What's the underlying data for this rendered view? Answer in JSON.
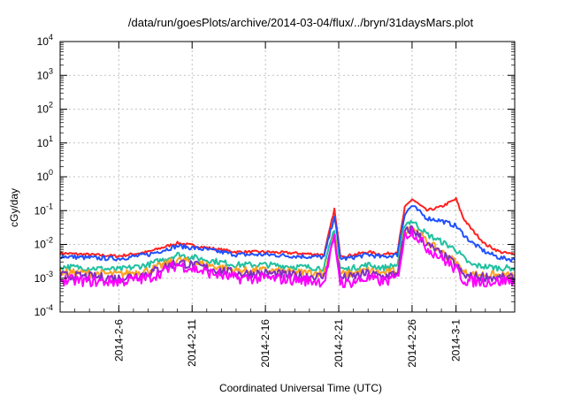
{
  "chart_data": {
    "type": "line",
    "title": "/data/run/goesPlots/archive/2014-03-04/flux/../bryn/31daysMars.plot",
    "xlabel": "Coordinated Universal Time (UTC)",
    "ylabel": "cGy/day",
    "yscale": "log",
    "ylim": [
      0.0001,
      10000
    ],
    "xlim": [
      "2014-02-02",
      "2014-03-05"
    ],
    "grid": true,
    "legend": "none",
    "y_ticks": [
      {
        "mantissa": "10",
        "exp": "-4",
        "value": 0.0001
      },
      {
        "mantissa": "10",
        "exp": "-3",
        "value": 0.001
      },
      {
        "mantissa": "10",
        "exp": "-2",
        "value": 0.01
      },
      {
        "mantissa": "10",
        "exp": "-1",
        "value": 0.1
      },
      {
        "mantissa": "10",
        "exp": "0",
        "value": 1
      },
      {
        "mantissa": "10",
        "exp": "1",
        "value": 10
      },
      {
        "mantissa": "10",
        "exp": "2",
        "value": 100
      },
      {
        "mantissa": "10",
        "exp": "3",
        "value": 1000
      },
      {
        "mantissa": "10",
        "exp": "4",
        "value": 10000
      }
    ],
    "x_ticks": [
      {
        "label": "2014-2-6",
        "date": "2014-02-06"
      },
      {
        "label": "2014-2-11",
        "date": "2014-02-11"
      },
      {
        "label": "2014-2-16",
        "date": "2014-02-16"
      },
      {
        "label": "2014-2-21",
        "date": "2014-02-21"
      },
      {
        "label": "2014-2-26",
        "date": "2014-02-26"
      },
      {
        "label": "2014-3-1",
        "date": "2014-03-01"
      }
    ],
    "series": [
      {
        "color": "#ff2020",
        "points": [
          [
            "2014-02-02",
            0.0055
          ],
          [
            "2014-02-04",
            0.005
          ],
          [
            "2014-02-06",
            0.0045
          ],
          [
            "2014-02-08",
            0.006
          ],
          [
            "2014-02-10",
            0.011
          ],
          [
            "2014-02-12",
            0.008
          ],
          [
            "2014-02-14",
            0.006
          ],
          [
            "2014-02-16",
            0.006
          ],
          [
            "2014-02-18",
            0.0055
          ],
          [
            "2014-02-20",
            0.005
          ],
          [
            "2014-02-20.7",
            0.11
          ],
          [
            "2014-02-21.1",
            0.005
          ],
          [
            "2014-02-21.5",
            0.0045
          ],
          [
            "2014-02-23",
            0.006
          ],
          [
            "2014-02-24",
            0.005
          ],
          [
            "2014-02-25",
            0.006
          ],
          [
            "2014-02-25.5",
            0.12
          ],
          [
            "2014-02-26",
            0.22
          ],
          [
            "2014-02-27",
            0.1
          ],
          [
            "2014-02-28",
            0.13
          ],
          [
            "2014-03-01",
            0.22
          ],
          [
            "2014-03-01.5",
            0.06
          ],
          [
            "2014-03-02",
            0.03
          ],
          [
            "2014-03-03",
            0.01
          ],
          [
            "2014-03-04",
            0.006
          ],
          [
            "2014-03-05",
            0.005
          ]
        ]
      },
      {
        "color": "#2050ff",
        "points": [
          [
            "2014-02-02",
            0.0045
          ],
          [
            "2014-02-04",
            0.004
          ],
          [
            "2014-02-06",
            0.0038
          ],
          [
            "2014-02-08",
            0.005
          ],
          [
            "2014-02-10",
            0.009
          ],
          [
            "2014-02-12",
            0.007
          ],
          [
            "2014-02-14",
            0.005
          ],
          [
            "2014-02-16",
            0.005
          ],
          [
            "2014-02-18",
            0.0045
          ],
          [
            "2014-02-20",
            0.0042
          ],
          [
            "2014-02-20.7",
            0.07
          ],
          [
            "2014-02-21.1",
            0.004
          ],
          [
            "2014-02-21.5",
            0.0038
          ],
          [
            "2014-02-23",
            0.005
          ],
          [
            "2014-02-24",
            0.0042
          ],
          [
            "2014-02-25",
            0.005
          ],
          [
            "2014-02-25.5",
            0.08
          ],
          [
            "2014-02-26",
            0.14
          ],
          [
            "2014-02-27",
            0.06
          ],
          [
            "2014-02-28",
            0.05
          ],
          [
            "2014-03-01",
            0.035
          ],
          [
            "2014-03-01.5",
            0.02
          ],
          [
            "2014-03-02",
            0.012
          ],
          [
            "2014-03-03",
            0.006
          ],
          [
            "2014-03-04",
            0.004
          ],
          [
            "2014-03-05",
            0.0035
          ]
        ]
      },
      {
        "color": "#20c0a0",
        "points": [
          [
            "2014-02-02",
            0.0022
          ],
          [
            "2014-02-04",
            0.002
          ],
          [
            "2014-02-06",
            0.0018
          ],
          [
            "2014-02-08",
            0.0025
          ],
          [
            "2014-02-10",
            0.005
          ],
          [
            "2014-02-12",
            0.0035
          ],
          [
            "2014-02-14",
            0.0025
          ],
          [
            "2014-02-16",
            0.0025
          ],
          [
            "2014-02-18",
            0.0022
          ],
          [
            "2014-02-20",
            0.002
          ],
          [
            "2014-02-20.7",
            0.03
          ],
          [
            "2014-02-21.1",
            0.002
          ],
          [
            "2014-02-21.5",
            0.0018
          ],
          [
            "2014-02-23",
            0.0025
          ],
          [
            "2014-02-24",
            0.002
          ],
          [
            "2014-02-25",
            0.0025
          ],
          [
            "2014-02-25.5",
            0.04
          ],
          [
            "2014-02-26",
            0.05
          ],
          [
            "2014-02-27",
            0.02
          ],
          [
            "2014-02-28",
            0.012
          ],
          [
            "2014-03-01",
            0.007
          ],
          [
            "2014-03-01.5",
            0.004
          ],
          [
            "2014-03-02",
            0.0025
          ],
          [
            "2014-03-03",
            0.0022
          ],
          [
            "2014-03-04",
            0.002
          ],
          [
            "2014-03-05",
            0.002
          ]
        ]
      },
      {
        "color": "#ffa020",
        "points": [
          [
            "2014-02-02",
            0.0015
          ],
          [
            "2014-02-04",
            0.0014
          ],
          [
            "2014-02-06",
            0.0013
          ],
          [
            "2014-02-08",
            0.0017
          ],
          [
            "2014-02-10",
            0.0035
          ],
          [
            "2014-02-12",
            0.0025
          ],
          [
            "2014-02-14",
            0.0017
          ],
          [
            "2014-02-16",
            0.0017
          ],
          [
            "2014-02-18",
            0.0015
          ],
          [
            "2014-02-20",
            0.0014
          ],
          [
            "2014-02-20.7",
            0.02
          ],
          [
            "2014-02-21.1",
            0.0014
          ],
          [
            "2014-02-21.5",
            0.0013
          ],
          [
            "2014-02-23",
            0.0017
          ],
          [
            "2014-02-24",
            0.0014
          ],
          [
            "2014-02-25",
            0.0017
          ],
          [
            "2014-02-25.5",
            0.025
          ],
          [
            "2014-02-26",
            0.035
          ],
          [
            "2014-02-27",
            0.012
          ],
          [
            "2014-02-28",
            0.006
          ],
          [
            "2014-03-01",
            0.003
          ],
          [
            "2014-03-01.5",
            0.0015
          ],
          [
            "2014-03-02",
            0.0013
          ],
          [
            "2014-03-03",
            0.0013
          ],
          [
            "2014-03-04",
            0.0012
          ],
          [
            "2014-03-05",
            0.0012
          ]
        ]
      },
      {
        "color": "#8030c0",
        "points": [
          [
            "2014-02-02",
            0.0012
          ],
          [
            "2014-02-04",
            0.0011
          ],
          [
            "2014-02-06",
            0.001
          ],
          [
            "2014-02-08",
            0.0014
          ],
          [
            "2014-02-10",
            0.003
          ],
          [
            "2014-02-12",
            0.002
          ],
          [
            "2014-02-14",
            0.0014
          ],
          [
            "2014-02-16",
            0.0014
          ],
          [
            "2014-02-18",
            0.0012
          ],
          [
            "2014-02-20",
            0.0011
          ],
          [
            "2014-02-20.7",
            0.018
          ],
          [
            "2014-02-21.1",
            0.0011
          ],
          [
            "2014-02-21.5",
            0.001
          ],
          [
            "2014-02-23",
            0.0014
          ],
          [
            "2014-02-24",
            0.0011
          ],
          [
            "2014-02-25",
            0.0014
          ],
          [
            "2014-02-25.5",
            0.022
          ],
          [
            "2014-02-26",
            0.03
          ],
          [
            "2014-02-27",
            0.01
          ],
          [
            "2014-02-28",
            0.005
          ],
          [
            "2014-03-01",
            0.0025
          ],
          [
            "2014-03-01.5",
            0.0012
          ],
          [
            "2014-03-02",
            0.0011
          ],
          [
            "2014-03-03",
            0.0011
          ],
          [
            "2014-03-04",
            0.001
          ],
          [
            "2014-03-05",
            0.001
          ]
        ]
      },
      {
        "color": "#ff00ff",
        "points": [
          [
            "2014-02-02",
            0.0009
          ],
          [
            "2014-02-04",
            0.0008
          ],
          [
            "2014-02-06",
            0.0008
          ],
          [
            "2014-02-08",
            0.001
          ],
          [
            "2014-02-10",
            0.0025
          ],
          [
            "2014-02-12",
            0.0015
          ],
          [
            "2014-02-14",
            0.001
          ],
          [
            "2014-02-16",
            0.001
          ],
          [
            "2014-02-18",
            0.0009
          ],
          [
            "2014-02-20",
            0.0008
          ],
          [
            "2014-02-20.7",
            0.015
          ],
          [
            "2014-02-21.1",
            0.0008
          ],
          [
            "2014-02-21.5",
            0.0007
          ],
          [
            "2014-02-23",
            0.001
          ],
          [
            "2014-02-24",
            0.0008
          ],
          [
            "2014-02-25",
            0.001
          ],
          [
            "2014-02-25.5",
            0.018
          ],
          [
            "2014-02-26",
            0.025
          ],
          [
            "2014-02-27",
            0.008
          ],
          [
            "2014-02-28",
            0.004
          ],
          [
            "2014-03-01",
            0.0018
          ],
          [
            "2014-03-01.5",
            0.0009
          ],
          [
            "2014-03-02",
            0.0008
          ],
          [
            "2014-03-03",
            0.0008
          ],
          [
            "2014-03-04",
            0.0008
          ],
          [
            "2014-03-05",
            0.0009
          ]
        ]
      }
    ]
  }
}
